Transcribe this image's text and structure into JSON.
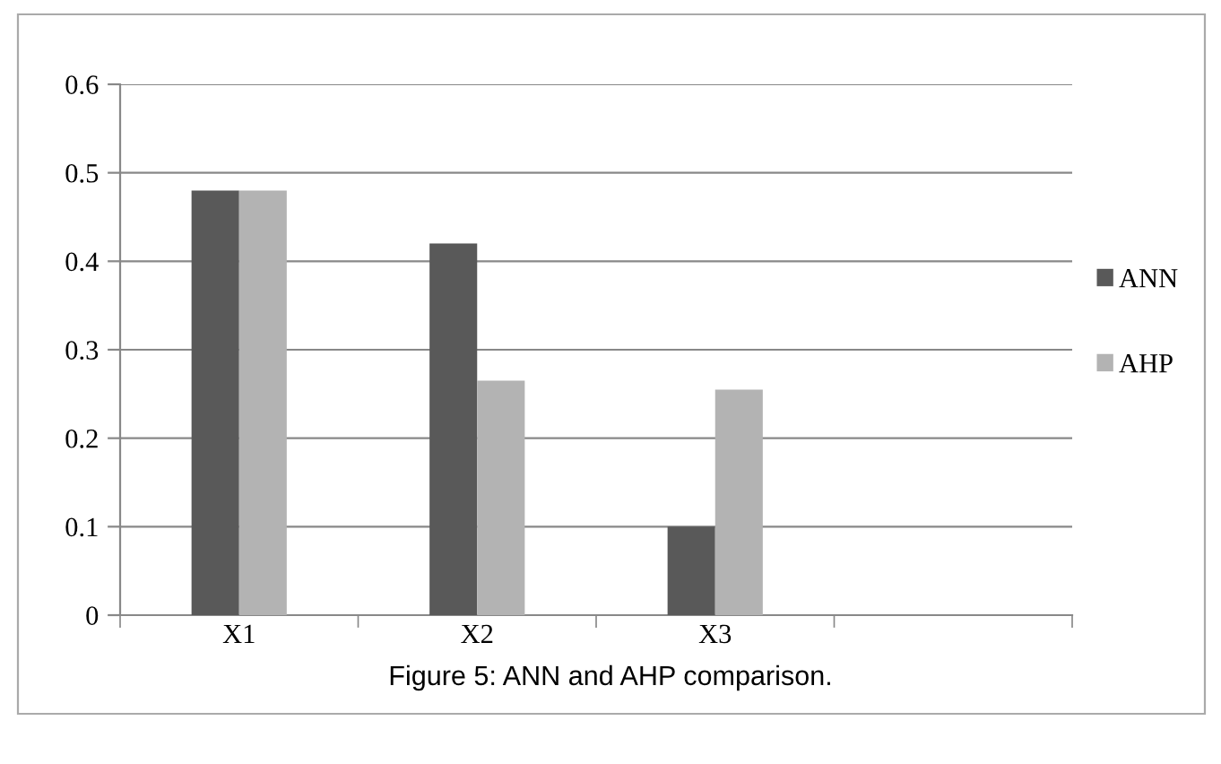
{
  "chart_data": {
    "type": "bar",
    "categories": [
      "X1",
      "X2",
      "X3",
      null
    ],
    "series": [
      {
        "name": "ANN",
        "color": "#595959",
        "values": [
          0.48,
          0.42,
          0.1,
          null
        ]
      },
      {
        "name": "AHP",
        "color": "#b3b3b3",
        "values": [
          0.48,
          0.265,
          0.255,
          null
        ]
      }
    ],
    "ylim": [
      0,
      0.6
    ],
    "yticks": [
      {
        "value": 0,
        "label": "0"
      },
      0.1,
      0.2,
      0.3,
      0.4,
      0.5,
      0.6
    ],
    "grid": "y",
    "legend": "right",
    "annotations": [
      "Figure 5: ANN and AHP comparison."
    ]
  }
}
